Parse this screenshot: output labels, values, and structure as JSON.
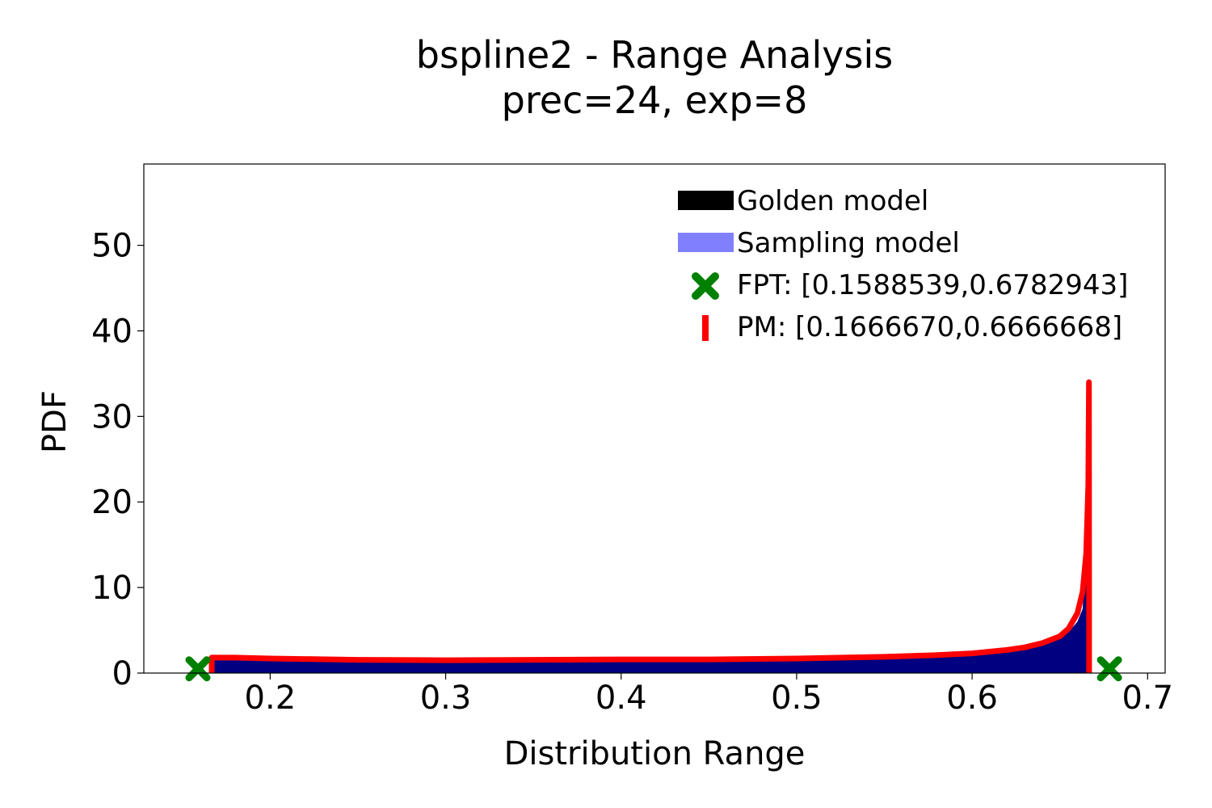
{
  "chart_data": {
    "type": "area",
    "title": "bspline2 - Range Analysis",
    "subtitle": "prec=24, exp=8",
    "xlabel": "Distribution Range",
    "ylabel": "PDF",
    "xlim": [
      0.128,
      0.71
    ],
    "ylim": [
      0,
      59.5
    ],
    "xticks": [
      0.2,
      0.3,
      0.4,
      0.5,
      0.6,
      0.7
    ],
    "xtick_labels": [
      "0.2",
      "0.3",
      "0.4",
      "0.5",
      "0.6",
      "0.7"
    ],
    "yticks": [
      0,
      10,
      20,
      30,
      40,
      50
    ],
    "ytick_labels": [
      "0",
      "10",
      "20",
      "30",
      "40",
      "50"
    ],
    "grid": false,
    "legend_position": "top-right",
    "series": [
      {
        "name": "Golden model",
        "kind": "histogram",
        "color": "#000000",
        "x": [
          0.1667,
          0.2,
          0.25,
          0.3,
          0.35,
          0.4,
          0.45,
          0.5,
          0.55,
          0.58,
          0.6,
          0.62,
          0.63,
          0.64,
          0.65,
          0.655,
          0.66,
          0.663,
          0.665,
          0.6667
        ],
        "values": [
          1.5,
          1.5,
          1.3,
          1.3,
          1.3,
          1.35,
          1.4,
          1.5,
          1.7,
          1.85,
          2.0,
          2.4,
          2.7,
          3.2,
          4.0,
          4.8,
          6.0,
          7.5,
          14.5,
          0
        ]
      },
      {
        "name": "Sampling model",
        "kind": "histogram",
        "color": "#8080ff",
        "x": [
          0.1667,
          0.2,
          0.25,
          0.3,
          0.35,
          0.4,
          0.45,
          0.5,
          0.55,
          0.58,
          0.6,
          0.62,
          0.63,
          0.64,
          0.65,
          0.655,
          0.66,
          0.663,
          0.665,
          0.6667
        ],
        "values": [
          1.5,
          1.5,
          1.3,
          1.3,
          1.3,
          1.35,
          1.4,
          1.5,
          1.7,
          1.85,
          2.0,
          2.4,
          2.7,
          3.2,
          4.0,
          4.8,
          6.0,
          7.5,
          14.5,
          0
        ]
      },
      {
        "name": "FPT: [0.1588539,0.6782943]",
        "kind": "markers",
        "color": "#008000",
        "x": [
          0.1588539,
          0.6782943
        ],
        "values": [
          0.5,
          0.5
        ]
      },
      {
        "name": "PM: [0.1666670,0.6666668]",
        "kind": "line",
        "color": "#ff0000",
        "x": [
          0.166667,
          0.1667,
          0.18,
          0.2,
          0.25,
          0.3,
          0.35,
          0.4,
          0.45,
          0.5,
          0.55,
          0.58,
          0.6,
          0.62,
          0.63,
          0.64,
          0.65,
          0.655,
          0.66,
          0.663,
          0.665,
          0.6662,
          0.6666,
          0.6666668,
          0.6666668
        ],
        "values": [
          0,
          1.8,
          1.8,
          1.7,
          1.55,
          1.5,
          1.55,
          1.6,
          1.6,
          1.7,
          1.9,
          2.1,
          2.3,
          2.7,
          3.0,
          3.5,
          4.3,
          5.2,
          7.0,
          9.5,
          14.0,
          22.0,
          34.0,
          10.0,
          0
        ]
      }
    ],
    "legend": [
      {
        "label": "Golden model",
        "swatch": "bar",
        "color": "#000000"
      },
      {
        "label": "Sampling model",
        "swatch": "bar",
        "color": "#8080ff"
      },
      {
        "label": "FPT: [0.1588539,0.6782943]",
        "swatch": "x-marker",
        "color": "#008000"
      },
      {
        "label": "PM: [0.1666670,0.6666668]",
        "swatch": "line",
        "color": "#ff0000"
      }
    ],
    "fill_color": "#000080"
  }
}
